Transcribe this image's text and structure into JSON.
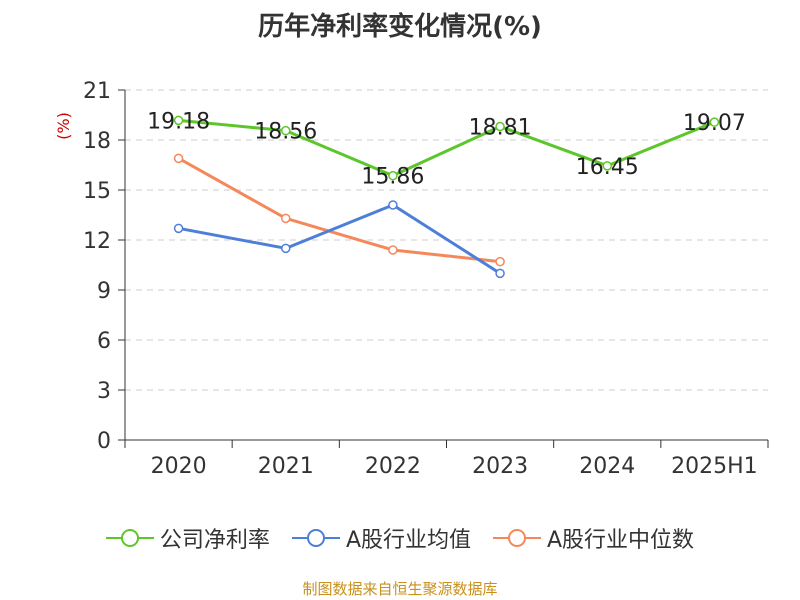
{
  "chart_data": {
    "type": "line",
    "title": "历年净利率变化情况(%)",
    "ylabel": "(%)",
    "categories": [
      "2020",
      "2021",
      "2022",
      "2023",
      "2024",
      "2025H1"
    ],
    "ylim": [
      0,
      21
    ],
    "yticks": [
      0,
      3,
      6,
      9,
      12,
      15,
      18,
      21
    ],
    "grid": true,
    "legend_position": "bottom",
    "series": [
      {
        "name": "公司净利率",
        "color": "#5cc62a",
        "values": [
          19.18,
          18.56,
          15.86,
          18.81,
          16.45,
          19.07
        ],
        "labels": [
          "19.18",
          "18.56",
          "15.86",
          "18.81",
          "16.45",
          "19.07"
        ]
      },
      {
        "name": "A股行业均值",
        "color": "#4e7fd8",
        "values": [
          12.7,
          11.5,
          14.1,
          10.0,
          null,
          null
        ]
      },
      {
        "name": "A股行业中位数",
        "color": "#f5885a",
        "values": [
          16.9,
          13.3,
          11.4,
          10.7,
          null,
          null
        ]
      }
    ],
    "source": "制图数据来自恒生聚源数据库"
  }
}
